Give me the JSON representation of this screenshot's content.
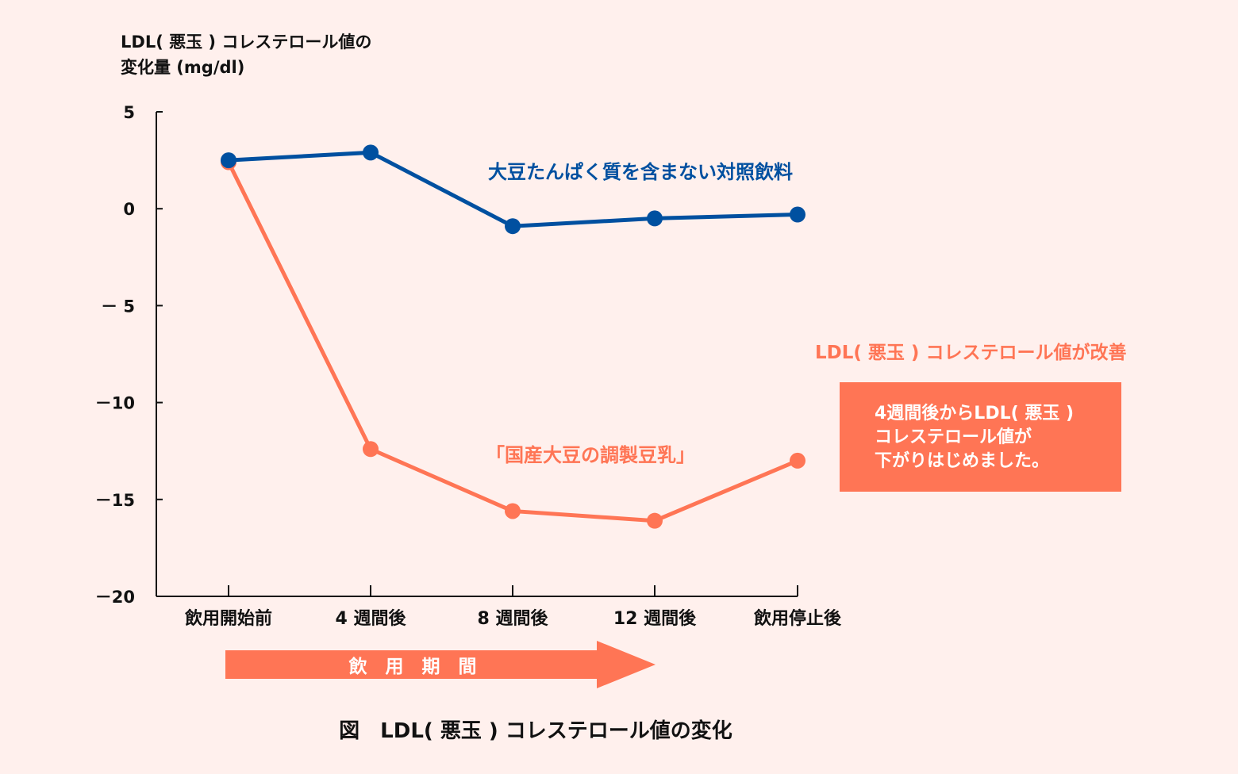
{
  "chart_data": {
    "type": "line",
    "title": "図　LDL( 悪玉 ) コレステロール値の変化",
    "ylabel_line1": "LDL( 悪玉 ) コレステロール値の",
    "ylabel_line2": "変化量 (mg/dl)",
    "categories": [
      "飲用開始前",
      "4 週間後",
      "8 週間後",
      "12 週間後",
      "飲用停止後"
    ],
    "ylim": [
      -20,
      5
    ],
    "yticks": [
      5,
      0,
      -5,
      -10,
      -15,
      -20
    ],
    "ytick_labels": [
      "5",
      "0",
      "－ 5",
      "－10",
      "－15",
      "－20"
    ],
    "grid": false,
    "series": [
      {
        "name": "大豆たんぱく質を含まない対照飲料",
        "color": "#0050a0",
        "values": [
          2.5,
          2.9,
          -0.9,
          -0.5,
          -0.3
        ]
      },
      {
        "name": "「国産大豆の調製豆乳」",
        "color": "#ff7555",
        "values": [
          2.4,
          -12.4,
          -15.6,
          -16.1,
          -13.0
        ]
      }
    ],
    "annotations": {
      "improvement": "LDL( 悪玉 ) コレステロール値が改善",
      "box_lines": [
        "4週間後からLDL( 悪玉 )",
        "コレステロール値が",
        "下がりはじめました。"
      ],
      "period_arrow": "飲　用　期　間"
    }
  }
}
